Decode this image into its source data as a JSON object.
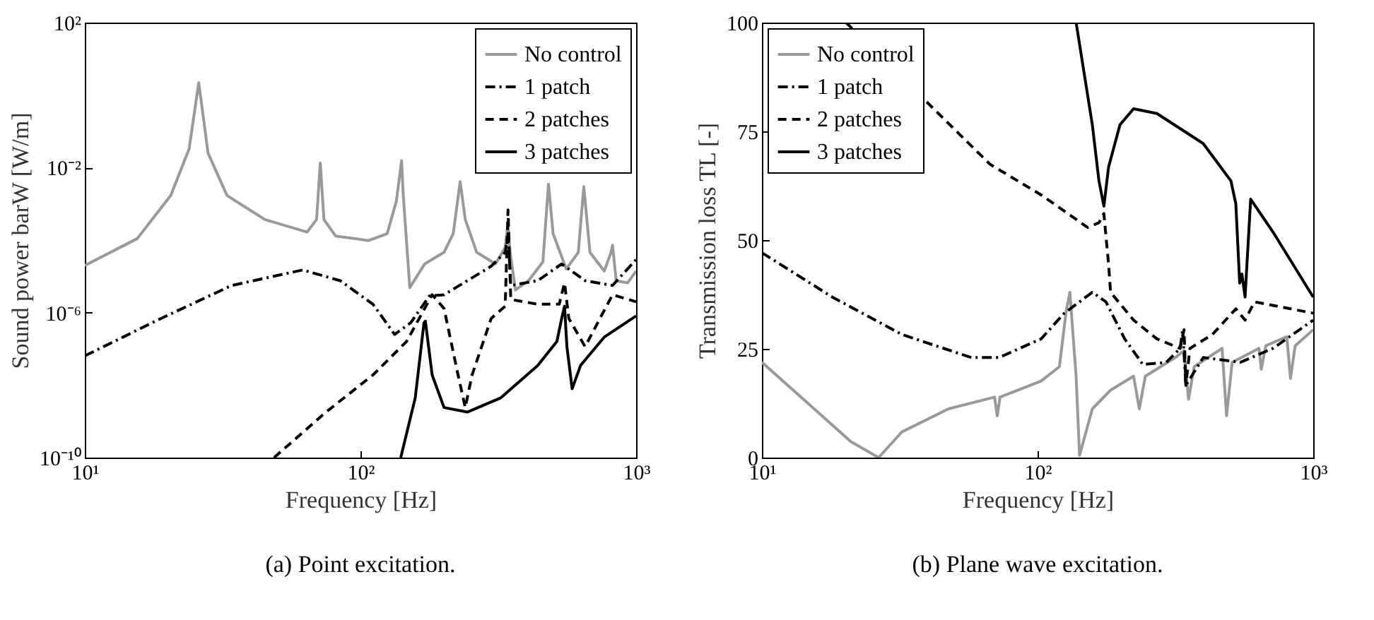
{
  "chart_data": [
    {
      "type": "line",
      "xlabel": "Frequency [Hz]",
      "ylabel": "Sound power barW [W/m]",
      "log": "xy",
      "grid": false,
      "legend": "top right",
      "xlim": [
        10,
        1000
      ],
      "xticks": [
        {
          "value": 10,
          "label": "10¹"
        },
        {
          "value": 100,
          "label": "10²"
        },
        {
          "value": 1000,
          "label": "10³"
        }
      ],
      "ylim": [
        1e-10,
        100
      ],
      "yticks": [
        {
          "value": 1e-10,
          "label": "10⁻¹⁰"
        },
        {
          "value": 1e-06,
          "label": "10⁻⁶"
        },
        {
          "value": 0.01,
          "label": "10⁻²"
        },
        {
          "value": 100,
          "label": "10²"
        }
      ],
      "annotations": [
        "(a) Point excitation."
      ],
      "series": [
        {
          "name": "No control",
          "color": "#999999",
          "line_style": "solid",
          "x": [
            10,
            15.5,
            20.5,
            23.9,
            25.9,
            28,
            32.8,
            45,
            64,
            69.3,
            71.5,
            73.7,
            81.2,
            107,
            125,
            135,
            141,
            143,
            151,
            171,
            201,
            217,
            230,
            240,
            264,
            309,
            335,
            343,
            349,
            365,
            407,
            459,
            481,
            500,
            558,
            617,
            646,
            680,
            766,
            811,
            821,
            847,
            931,
            1000
          ],
          "values": [
            2e-05,
            0.00011,
            0.0017,
            0.033,
            2.2,
            0.025,
            0.0017,
            0.00037,
            0.000166,
            0.00037,
            0.0135,
            0.00037,
            0.00013,
            9.7e-05,
            0.00015,
            0.0012,
            0.0156,
            0.0017,
            4.9e-06,
            2.2e-05,
            4.6e-05,
            0.00015,
            0.0041,
            0.00037,
            4.6e-05,
            2.2e-05,
            6.3e-05,
            0.00028,
            4.6e-05,
            4.2e-06,
            7.6e-06,
            2.5e-05,
            0.0035,
            0.00015,
            1.6e-05,
            4.6e-05,
            0.003,
            4.6e-05,
            1.4e-05,
            4.6e-05,
            7.2e-05,
            7.6e-06,
            6.6e-06,
            1.4e-05
          ]
        },
        {
          "name": "1 patch",
          "color": "#000000",
          "line_style": "dashdot",
          "x": [
            10,
            18.9,
            34.1,
            61.7,
            84.4,
            111,
            133,
            152,
            178,
            201,
            298,
            335,
            343,
            351,
            440,
            537,
            653,
            821,
            1000
          ],
          "values": [
            6.4e-08,
            6.9e-07,
            5.6e-06,
            1.5e-05,
            7.6e-06,
            1.7e-06,
            2.5e-07,
            5.2e-07,
            2.9e-06,
            3.1e-06,
            1.9e-05,
            4.6e-05,
            0.00015,
            5.6e-06,
            7.6e-06,
            2.2e-05,
            7.6e-06,
            5.6e-06,
            2.9e-05
          ]
        },
        {
          "name": "2 patches",
          "color": "#000000",
          "line_style": "dashed",
          "x": [
            48.6,
            75,
            111,
            147,
            171,
            182,
            201,
            226,
            240,
            254,
            298,
            335,
            343,
            351,
            440,
            526,
            550,
            570,
            653,
            821,
            1000
          ],
          "values": [
            1e-10,
            1.8e-09,
            1.9e-08,
            1.6e-07,
            1.3e-06,
            3.1e-06,
            1.3e-06,
            1.9e-08,
            2.4e-09,
            1.9e-08,
            6.9e-07,
            1.5e-06,
            0.00068,
            2.3e-06,
            1.7e-06,
            1.7e-06,
            6.6e-06,
            6.9e-07,
            1.15e-07,
            3.1e-06,
            2e-06
          ]
        },
        {
          "name": "3 patches",
          "color": "#000000",
          "line_style": "solid",
          "x": [
            140,
            158,
            170,
            172,
            182,
            201,
            244,
            322,
            440,
            516,
            537,
            550,
            561,
            586,
            629,
            766,
            1000
          ],
          "values": [
            1e-10,
            4.4e-09,
            5.2e-07,
            5.8e-07,
            1.9e-08,
            2.4e-09,
            1.8e-09,
            4.4e-09,
            3.5e-08,
            1.6e-07,
            6.9e-07,
            1.5e-06,
            1.15e-07,
            7.9e-09,
            3.5e-08,
            2.1e-07,
            8.1e-07
          ]
        }
      ]
    },
    {
      "type": "line",
      "xlabel": "Frequency [Hz]",
      "ylabel": "Transmission loss TL [-]",
      "log": "x",
      "grid": false,
      "legend": "top left",
      "xlim": [
        10,
        1000
      ],
      "xticks": [
        {
          "value": 10,
          "label": "10¹"
        },
        {
          "value": 100,
          "label": "10²"
        },
        {
          "value": 1000,
          "label": "10³"
        }
      ],
      "ylim": [
        0,
        100
      ],
      "yticks": [
        0,
        25,
        50,
        75,
        100
      ],
      "annotations": [
        "(b) Plane wave excitation."
      ],
      "series": [
        {
          "name": "No control",
          "color": "#999999",
          "line_style": "solid",
          "x": [
            10,
            14.8,
            21,
            26.5,
            32.2,
            47.5,
            69.8,
            71.4,
            73.1,
            103,
            120,
            127,
            131,
            138,
            142,
            158,
            184,
            223,
            234,
            246,
            316,
            340,
            353,
            370,
            467,
            485,
            508,
            636,
            648,
            673,
            802,
            827,
            860,
            1000
          ],
          "values": [
            21.9,
            12.3,
            3.7,
            0,
            5.9,
            11.2,
            13.9,
            9.6,
            13.9,
            17.6,
            20.9,
            33.7,
            38,
            18.7,
            0.5,
            11.2,
            15.5,
            18.7,
            11.2,
            18.7,
            23,
            24.6,
            13.4,
            20.9,
            25.1,
            9.6,
            21.9,
            25.1,
            20.3,
            25.7,
            27.8,
            18.2,
            25.7,
            29.4
          ]
        },
        {
          "name": "1 patch",
          "color": "#000000",
          "line_style": "dashdot",
          "x": [
            10,
            18,
            32.2,
            57.5,
            72.5,
            103,
            125,
            158,
            177,
            207,
            241,
            293,
            329,
            336,
            345,
            399,
            544,
            714,
            1000
          ],
          "values": [
            47.1,
            36.9,
            28.3,
            23,
            23,
            27.3,
            33.2,
            38,
            35.8,
            27.3,
            21.4,
            21.9,
            25.1,
            29.4,
            16.6,
            23,
            21.9,
            25.1,
            31.6
          ]
        },
        {
          "name": "2 patches",
          "color": "#000000",
          "line_style": "dashed",
          "x": [
            20.2,
            67.3,
            103,
            152,
            167,
            174,
            181,
            184,
            223,
            271,
            329,
            340,
            345,
            357,
            431,
            524,
            566,
            612,
            1000
          ],
          "values": [
            100,
            67.4,
            60.4,
            52.9,
            54,
            56.1,
            44.4,
            38,
            31.6,
            27.3,
            25.1,
            29.4,
            16.6,
            25.1,
            28.3,
            34.2,
            31.6,
            35.8,
            33.2
          ]
        },
        {
          "name": "3 patches",
          "color": "#000000",
          "line_style": "solid",
          "x": [
            138,
            158,
            167,
            174,
            181,
            199,
            223,
            271,
            399,
            503,
            524,
            541,
            551,
            566,
            593,
            714,
            1000
          ],
          "values": [
            100,
            76.5,
            63.6,
            57.8,
            66.8,
            76.5,
            80.2,
            79.1,
            72.2,
            63.6,
            58.3,
            40.1,
            42.2,
            36.9,
            59.4,
            51.9,
            36.9
          ]
        }
      ]
    }
  ]
}
